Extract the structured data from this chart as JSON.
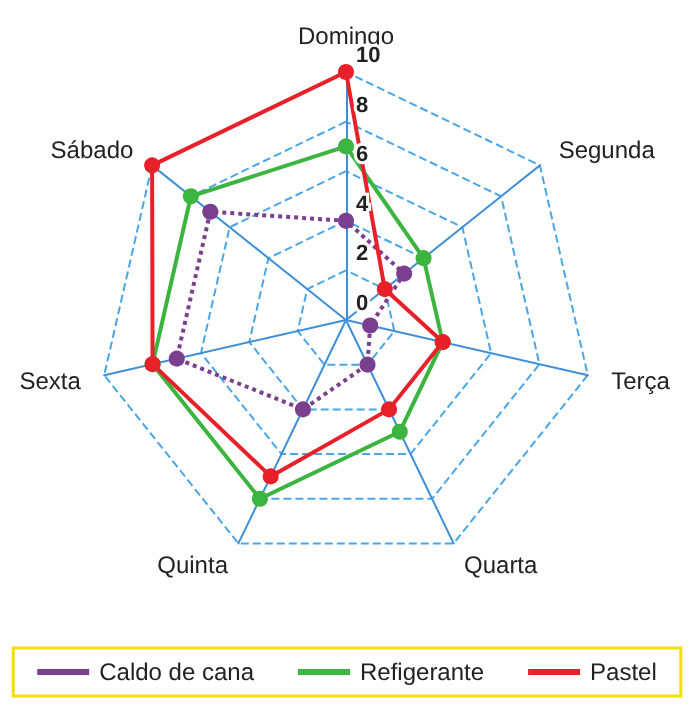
{
  "chart_data": {
    "type": "radar",
    "categories": [
      "Domingo",
      "Segunda",
      "Terça",
      "Quarta",
      "Quinta",
      "Sexta",
      "Sábado"
    ],
    "ylim": [
      0,
      10
    ],
    "yticks": [
      0,
      2,
      4,
      6,
      8,
      10
    ],
    "grid": true,
    "legend": "bottom",
    "marker": "circle",
    "series": [
      {
        "name": "Caldo de cana",
        "color": "#7b3f8f",
        "line_style": "dotted",
        "values": [
          4,
          3,
          1,
          2,
          4,
          7,
          7
        ]
      },
      {
        "name": "Refigerante",
        "color": "#3cb440",
        "line_style": "solid",
        "values": [
          7,
          4,
          4,
          5,
          8,
          8,
          8
        ]
      },
      {
        "name": "Pastel",
        "color": "#e8202a",
        "line_style": "solid",
        "values": [
          10,
          2,
          4,
          4,
          7,
          8,
          10
        ]
      }
    ]
  }
}
